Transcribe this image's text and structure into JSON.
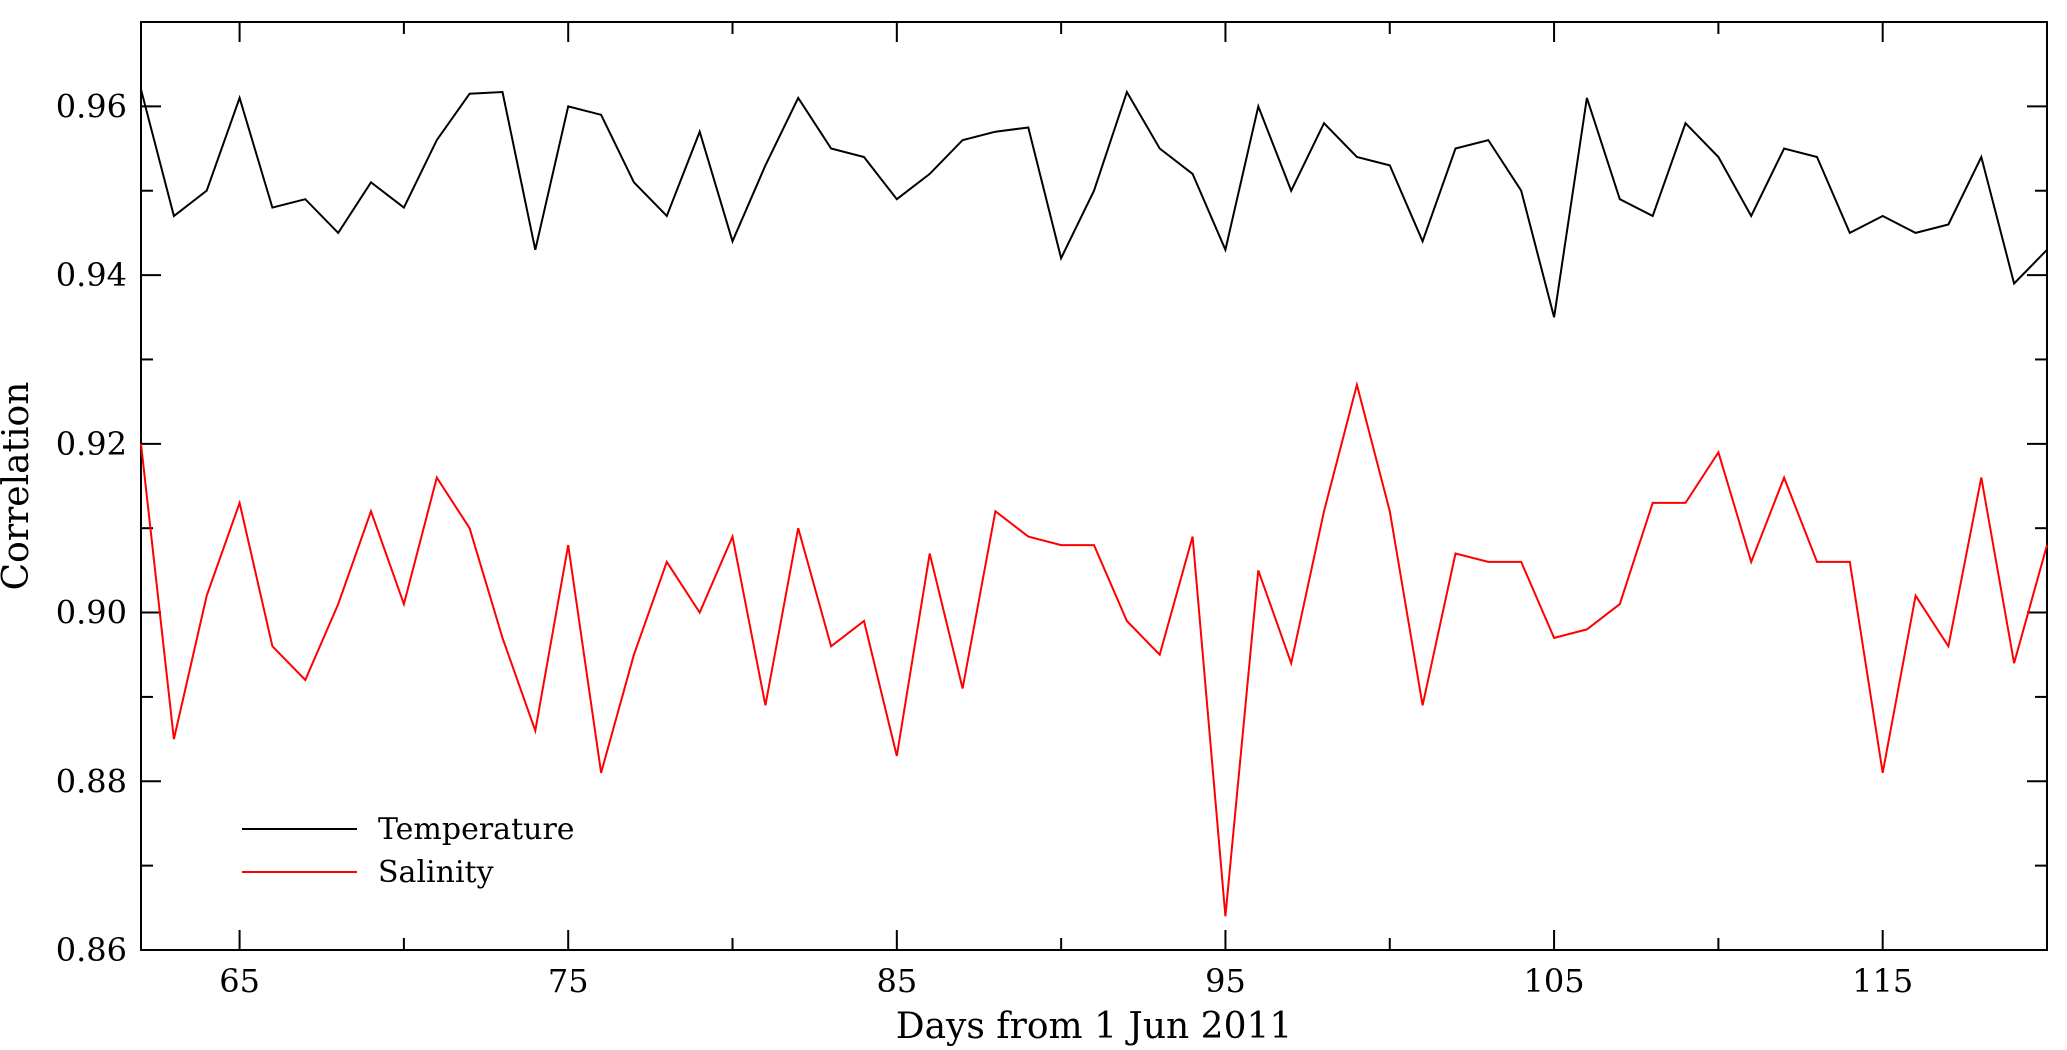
{
  "chart_data": {
    "type": "line",
    "xlabel": "Days from 1 Jun 2011",
    "ylabel": "Correlation",
    "xlim": [
      62,
      120
    ],
    "ylim": [
      0.86,
      0.97
    ],
    "x_ticks_labeled": [
      65,
      75,
      85,
      95,
      105,
      115
    ],
    "y_ticks_labeled": [
      0.86,
      0.88,
      0.9,
      0.92,
      0.94,
      0.96
    ],
    "y_tick_labels": [
      "0.86",
      "0.88",
      "0.90",
      "0.92",
      "0.94",
      "0.96"
    ],
    "grid": false,
    "legend_position": "bottom-left",
    "x": [
      62,
      63,
      64,
      65,
      66,
      67,
      68,
      69,
      70,
      71,
      72,
      73,
      74,
      75,
      76,
      77,
      78,
      79,
      80,
      81,
      82,
      83,
      84,
      85,
      86,
      87,
      88,
      89,
      90,
      91,
      92,
      93,
      94,
      95,
      96,
      97,
      98,
      99,
      100,
      101,
      102,
      103,
      104,
      105,
      106,
      107,
      108,
      109,
      110,
      111,
      112,
      113,
      114,
      115,
      116,
      117,
      118,
      119,
      120
    ],
    "series": [
      {
        "name": "Temperature",
        "color": "#000000",
        "values": [
          0.962,
          0.947,
          0.95,
          0.961,
          0.948,
          0.949,
          0.945,
          0.951,
          0.948,
          0.956,
          0.9615,
          0.9617,
          0.943,
          0.96,
          0.959,
          0.951,
          0.947,
          0.957,
          0.944,
          0.953,
          0.961,
          0.955,
          0.954,
          0.949,
          0.952,
          0.956,
          0.957,
          0.9575,
          0.942,
          0.95,
          0.9617,
          0.955,
          0.952,
          0.943,
          0.96,
          0.95,
          0.958,
          0.954,
          0.953,
          0.944,
          0.955,
          0.956,
          0.95,
          0.935,
          0.961,
          0.949,
          0.947,
          0.958,
          0.954,
          0.947,
          0.955,
          0.954,
          0.945,
          0.947,
          0.945,
          0.946,
          0.954,
          0.939,
          0.943
        ]
      },
      {
        "name": "Salinity",
        "color": "#ff0000",
        "values": [
          0.92,
          0.885,
          0.902,
          0.913,
          0.896,
          0.892,
          0.901,
          0.912,
          0.901,
          0.916,
          0.91,
          0.897,
          0.886,
          0.908,
          0.881,
          0.895,
          0.906,
          0.9,
          0.909,
          0.889,
          0.91,
          0.896,
          0.899,
          0.883,
          0.907,
          0.891,
          0.912,
          0.909,
          0.908,
          0.908,
          0.899,
          0.895,
          0.909,
          0.864,
          0.905,
          0.894,
          0.912,
          0.927,
          0.912,
          0.889,
          0.907,
          0.906,
          0.906,
          0.897,
          0.898,
          0.901,
          0.913,
          0.913,
          0.919,
          0.906,
          0.916,
          0.906,
          0.906,
          0.881,
          0.902,
          0.896,
          0.916,
          0.894,
          0.908
        ]
      }
    ]
  }
}
